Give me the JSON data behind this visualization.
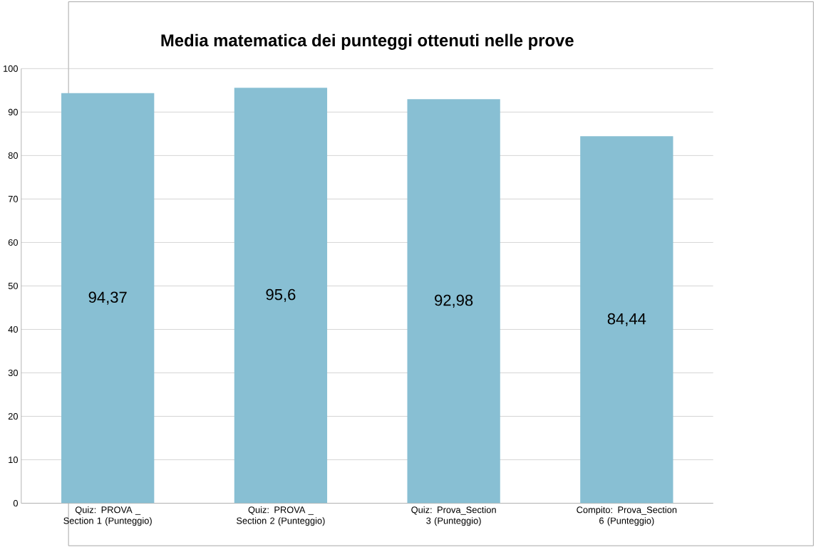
{
  "chart_data": {
    "type": "bar",
    "title": "Media matematica dei punteggi ottenuti nelle prove",
    "categories": [
      "Quiz: PROVA _ Section 1 (Punteggio)",
      "Quiz: PROVA _ Section 2 (Punteggio)",
      "Quiz: Prova_Section 3 (Punteggio)",
      "Compito: Prova_Section 6 (Punteggio)"
    ],
    "values": [
      94.37,
      95.6,
      92.98,
      84.44
    ],
    "value_labels": [
      "94,37",
      "95,6",
      "92,98",
      "84,44"
    ],
    "color": "#88bfd3",
    "ylim": [
      0,
      100
    ],
    "yticks": [
      0,
      10,
      20,
      30,
      40,
      50,
      60,
      70,
      80,
      90,
      100
    ],
    "grid": "y"
  }
}
